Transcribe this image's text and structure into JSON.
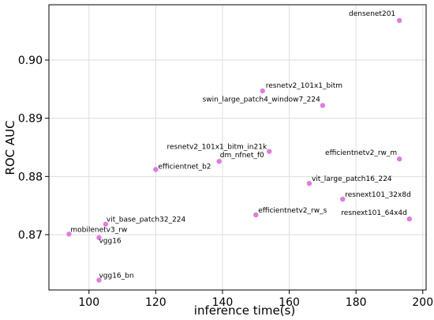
{
  "chart_data": {
    "type": "scatter",
    "title": "",
    "xlabel": "inference time(s)",
    "ylabel": "ROC AUC",
    "xlim": [
      88,
      201
    ],
    "ylim": [
      0.8605,
      0.9095
    ],
    "x_ticks": [
      100,
      120,
      140,
      160,
      180,
      200
    ],
    "y_ticks": [
      0.87,
      0.88,
      0.89,
      0.9
    ],
    "grid": true,
    "marker_color": "#e07be0",
    "points": [
      {
        "label": "densenet201",
        "x": 193,
        "y": 0.9068
      },
      {
        "label": "resnetv2_101x1_bitm",
        "x": 152,
        "y": 0.8947
      },
      {
        "label": "swin_large_patch4_window7_224",
        "x": 170,
        "y": 0.8922
      },
      {
        "label": "resnetv2_101x1_bitm_in21k",
        "x": 154,
        "y": 0.8843
      },
      {
        "label": "dm_nfnet_f0",
        "x": 139,
        "y": 0.8826
      },
      {
        "label": "efficientnet_b2",
        "x": 120,
        "y": 0.8812
      },
      {
        "label": "efficientnetv2_rw_m",
        "x": 193,
        "y": 0.883
      },
      {
        "label": "vit_large_patch16_224",
        "x": 166,
        "y": 0.8788
      },
      {
        "label": "resnext101_32x8d",
        "x": 176,
        "y": 0.8761
      },
      {
        "label": "efficientnetv2_rw_s",
        "x": 150,
        "y": 0.8734
      },
      {
        "label": "resnext101_64x4d",
        "x": 196,
        "y": 0.8727
      },
      {
        "label": "vit_base_patch32_224",
        "x": 105,
        "y": 0.8718
      },
      {
        "label": "mobilenetv3_rw",
        "x": 94,
        "y": 0.8701
      },
      {
        "label": "vgg16",
        "x": 103,
        "y": 0.8695
      },
      {
        "label": "vgg16_bn",
        "x": 103,
        "y": 0.8622
      }
    ]
  }
}
